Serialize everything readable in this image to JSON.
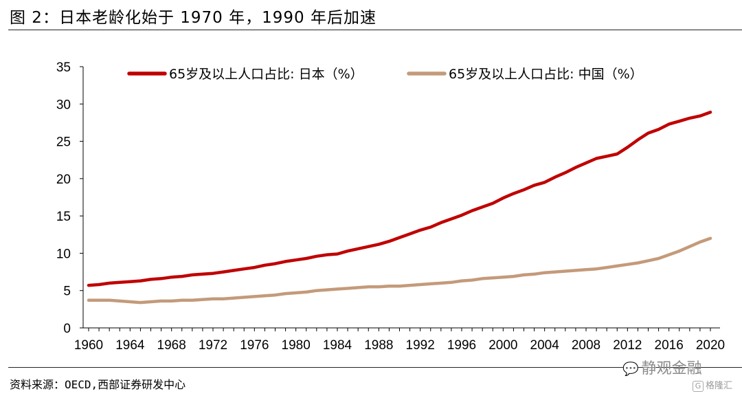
{
  "title": "图 2：日本老龄化始于 1970 年，1990 年后加速",
  "source": "资料来源：OECD,西部证券研发中心",
  "watermark": {
    "primary": "静观金融",
    "primary_icon": "wechat-icon",
    "secondary": "格隆汇",
    "secondary_icon": "gelonghui-logo-icon"
  },
  "colors": {
    "japan": "#C00000",
    "china": "#C49A7A",
    "axis": "#000000"
  },
  "chart_data": {
    "type": "line",
    "title": "",
    "xlabel": "",
    "ylabel": "",
    "xlim": [
      1960,
      2020
    ],
    "ylim": [
      0,
      35
    ],
    "grid": false,
    "legend_position": "top",
    "y_ticks": [
      0,
      5,
      10,
      15,
      20,
      25,
      30,
      35
    ],
    "x_ticks": [
      1960,
      1964,
      1968,
      1972,
      1976,
      1980,
      1984,
      1988,
      1992,
      1996,
      2000,
      2004,
      2008,
      2012,
      2016,
      2020
    ],
    "x": [
      1960,
      1961,
      1962,
      1963,
      1964,
      1965,
      1966,
      1967,
      1968,
      1969,
      1970,
      1971,
      1972,
      1973,
      1974,
      1975,
      1976,
      1977,
      1978,
      1979,
      1980,
      1981,
      1982,
      1983,
      1984,
      1985,
      1986,
      1987,
      1988,
      1989,
      1990,
      1991,
      1992,
      1993,
      1994,
      1995,
      1996,
      1997,
      1998,
      1999,
      2000,
      2001,
      2002,
      2003,
      2004,
      2005,
      2006,
      2007,
      2008,
      2009,
      2010,
      2011,
      2012,
      2013,
      2014,
      2015,
      2016,
      2017,
      2018,
      2019,
      2020
    ],
    "series": [
      {
        "name": "65岁及以上人口占比: 日本（%）",
        "color": "#C00000",
        "values": [
          5.7,
          5.8,
          6.0,
          6.1,
          6.2,
          6.3,
          6.5,
          6.6,
          6.8,
          6.9,
          7.1,
          7.2,
          7.3,
          7.5,
          7.7,
          7.9,
          8.1,
          8.4,
          8.6,
          8.9,
          9.1,
          9.3,
          9.6,
          9.8,
          9.9,
          10.3,
          10.6,
          10.9,
          11.2,
          11.6,
          12.1,
          12.6,
          13.1,
          13.5,
          14.1,
          14.6,
          15.1,
          15.7,
          16.2,
          16.7,
          17.4,
          18.0,
          18.5,
          19.1,
          19.5,
          20.2,
          20.8,
          21.5,
          22.1,
          22.7,
          23.0,
          23.3,
          24.2,
          25.2,
          26.1,
          26.6,
          27.3,
          27.7,
          28.1,
          28.4,
          28.9
        ]
      },
      {
        "name": "65岁及以上人口占比: 中国（%）",
        "color": "#C49A7A",
        "values": [
          3.7,
          3.7,
          3.7,
          3.6,
          3.5,
          3.4,
          3.5,
          3.6,
          3.6,
          3.7,
          3.7,
          3.8,
          3.9,
          3.9,
          4.0,
          4.1,
          4.2,
          4.3,
          4.4,
          4.6,
          4.7,
          4.8,
          5.0,
          5.1,
          5.2,
          5.3,
          5.4,
          5.5,
          5.5,
          5.6,
          5.6,
          5.7,
          5.8,
          5.9,
          6.0,
          6.1,
          6.3,
          6.4,
          6.6,
          6.7,
          6.8,
          6.9,
          7.1,
          7.2,
          7.4,
          7.5,
          7.6,
          7.7,
          7.8,
          7.9,
          8.1,
          8.3,
          8.5,
          8.7,
          9.0,
          9.3,
          9.8,
          10.3,
          10.9,
          11.5,
          12.0
        ]
      }
    ]
  }
}
